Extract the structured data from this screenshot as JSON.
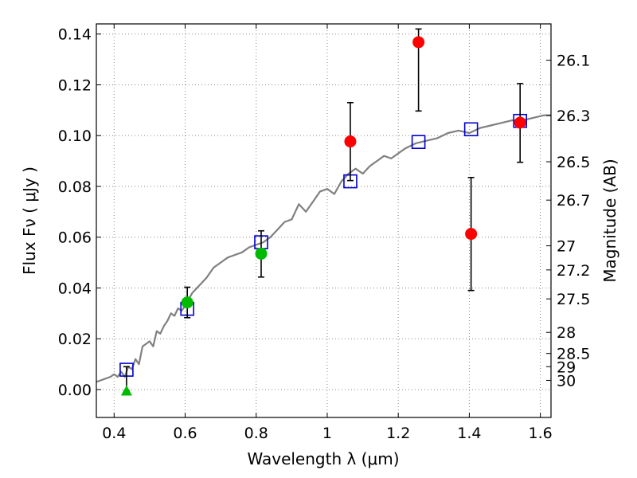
{
  "chart_data": {
    "type": "scatter",
    "title": "",
    "xlabel": "Wavelength  λ (μm)",
    "ylabel": "Flux  Fν  ( μJy )",
    "ylabel_right": "Magnitude (AB)",
    "xlim": [
      0.35,
      1.63
    ],
    "ylim": [
      -0.011,
      0.144
    ],
    "grid": true,
    "xticks": [
      0.4,
      0.6,
      0.8,
      1.0,
      1.2,
      1.4,
      1.6
    ],
    "xtick_labels": [
      "0.4",
      "0.6",
      "0.8",
      "1",
      "1.2",
      "1.4",
      "1.6"
    ],
    "yticks": [
      0.0,
      0.02,
      0.04,
      0.06,
      0.08,
      0.1,
      0.12,
      0.14
    ],
    "ytick_labels": [
      "0.00",
      "0.02",
      "0.04",
      "0.06",
      "0.08",
      "0.10",
      "0.12",
      "0.14"
    ],
    "right_ticks": [
      {
        "label": "26.1",
        "flux": 0.1297
      },
      {
        "label": "26.3",
        "flux": 0.1079
      },
      {
        "label": "26.5",
        "flux": 0.0897
      },
      {
        "label": "26.7",
        "flux": 0.0746
      },
      {
        "label": "27",
        "flux": 0.0566
      },
      {
        "label": "27.2",
        "flux": 0.0471
      },
      {
        "label": "27.5",
        "flux": 0.0357
      },
      {
        "label": "28",
        "flux": 0.0225
      },
      {
        "label": "28.5",
        "flux": 0.0142
      },
      {
        "label": "29",
        "flux": 0.009
      },
      {
        "label": "30",
        "flux": 0.0036
      }
    ],
    "series": [
      {
        "kind": "model_sed_line",
        "color": "#808080",
        "x": [
          0.35,
          0.37,
          0.39,
          0.4,
          0.41,
          0.42,
          0.43,
          0.44,
          0.45,
          0.46,
          0.47,
          0.48,
          0.49,
          0.5,
          0.51,
          0.52,
          0.53,
          0.54,
          0.55,
          0.56,
          0.57,
          0.58,
          0.59,
          0.6,
          0.62,
          0.64,
          0.66,
          0.68,
          0.7,
          0.72,
          0.74,
          0.76,
          0.78,
          0.8,
          0.82,
          0.84,
          0.86,
          0.88,
          0.9,
          0.92,
          0.94,
          0.96,
          0.98,
          1.0,
          1.02,
          1.04,
          1.06,
          1.08,
          1.1,
          1.12,
          1.14,
          1.16,
          1.18,
          1.2,
          1.22,
          1.25,
          1.28,
          1.31,
          1.34,
          1.37,
          1.4,
          1.43,
          1.46,
          1.49,
          1.52,
          1.55,
          1.58,
          1.61,
          1.63
        ],
        "y": [
          0.003,
          0.004,
          0.005,
          0.006,
          0.005,
          0.007,
          0.005,
          0.009,
          0.008,
          0.012,
          0.01,
          0.017,
          0.018,
          0.019,
          0.017,
          0.023,
          0.022,
          0.025,
          0.027,
          0.03,
          0.029,
          0.032,
          0.031,
          0.033,
          0.038,
          0.041,
          0.044,
          0.048,
          0.05,
          0.052,
          0.053,
          0.054,
          0.056,
          0.057,
          0.058,
          0.06,
          0.063,
          0.066,
          0.067,
          0.073,
          0.07,
          0.074,
          0.078,
          0.079,
          0.077,
          0.082,
          0.085,
          0.087,
          0.085,
          0.088,
          0.09,
          0.092,
          0.091,
          0.093,
          0.095,
          0.097,
          0.098,
          0.099,
          0.101,
          0.102,
          0.101,
          0.103,
          0.104,
          0.105,
          0.106,
          0.106,
          0.107,
          0.108,
          0.108
        ]
      },
      {
        "kind": "model_photometry",
        "marker": "open-square",
        "color": "#0000cc",
        "x": [
          0.435,
          0.606,
          0.814,
          1.065,
          1.257,
          1.405,
          1.543
        ],
        "y": [
          0.0078,
          0.0318,
          0.058,
          0.082,
          0.0975,
          0.1025,
          0.1058
        ]
      },
      {
        "kind": "observed_detection",
        "marker": "filled-circle",
        "color": "#00bb00",
        "x": [
          0.606,
          0.814
        ],
        "y": [
          0.0343,
          0.0535
        ],
        "yerr_low": [
          0.0283,
          0.0443
        ],
        "yerr_high": [
          0.0403,
          0.0625
        ]
      },
      {
        "kind": "observed_detection",
        "marker": "filled-circle",
        "color": "#ff0000",
        "x": [
          1.065,
          1.257,
          1.405,
          1.543
        ],
        "y": [
          0.0977,
          0.1368,
          0.0613,
          0.1051
        ],
        "yerr_low": [
          0.0823,
          0.1097,
          0.039,
          0.0895
        ],
        "yerr_high": [
          0.113,
          0.142,
          0.0835,
          0.1205
        ]
      },
      {
        "kind": "upper_limit",
        "marker": "filled-triangle",
        "color": "#00bb00",
        "x": [
          0.435
        ],
        "y": [
          -0.0005
        ],
        "yerr_low": [
          -0.0005
        ],
        "yerr_high": [
          0.009
        ]
      }
    ]
  }
}
